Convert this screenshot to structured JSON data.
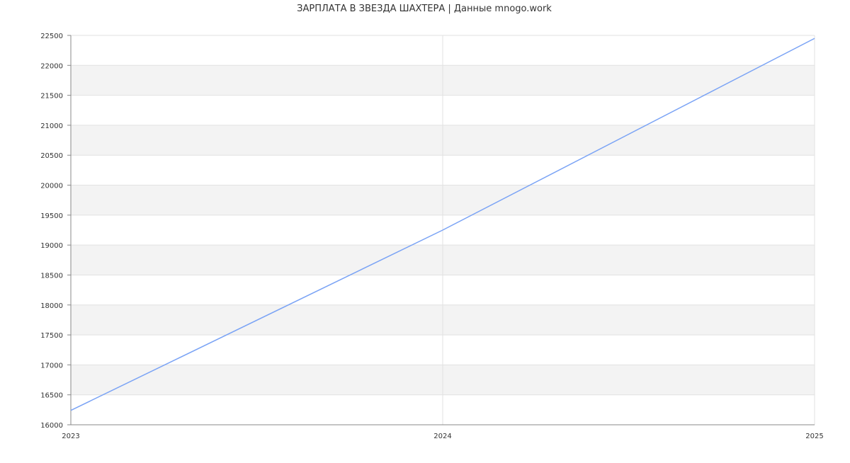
{
  "chart_data": {
    "type": "line",
    "title": "ЗАРПЛАТА В ЗВЕЗДА ШАХТЕРА | Данные mnogo.work",
    "xlabel": "",
    "ylabel": "",
    "x": [
      "2023",
      "2024",
      "2025"
    ],
    "series": [
      {
        "values": [
          16240,
          19250,
          22450
        ],
        "color": "#7aa3f5"
      }
    ],
    "ylim": [
      16000,
      22500
    ],
    "yticks": [
      16000,
      16500,
      17000,
      17500,
      18000,
      18500,
      19000,
      19500,
      20000,
      20500,
      21000,
      21500,
      22000,
      22500
    ],
    "grid": true,
    "band_color": "#f3f3f3"
  }
}
